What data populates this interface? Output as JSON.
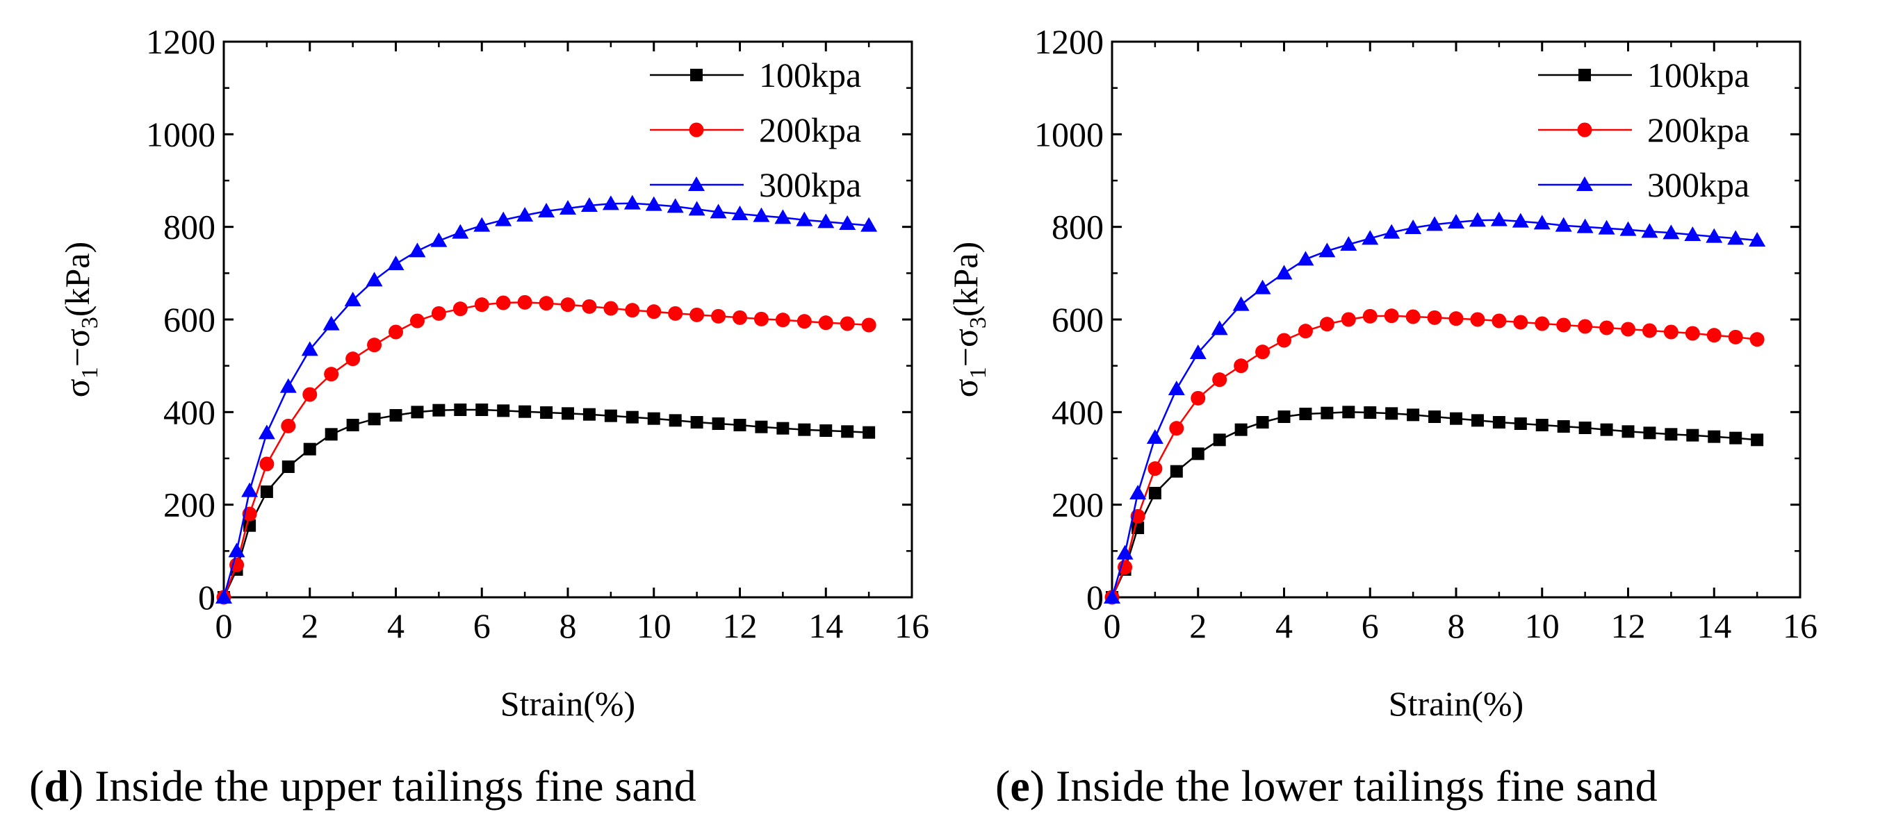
{
  "panels": [
    {
      "caption_letter": "d",
      "caption_text": "Inside the upper tailings fine sand"
    },
    {
      "caption_letter": "e",
      "caption_text": "Inside the lower tailings fine sand"
    }
  ],
  "colors": {
    "s100": "#000000",
    "s200": "#ff0000",
    "s300": "#0000ff"
  },
  "chart_data": [
    {
      "type": "line",
      "title": "",
      "xlabel": "Strain(%)",
      "ylabel_sigma": "σ",
      "ylabel_sub1": "1",
      "ylabel_minus": "−",
      "ylabel_sub3": "3",
      "ylabel_unit": "(kPa)",
      "xlim": [
        0,
        16
      ],
      "ylim": [
        0,
        1200
      ],
      "xticks": [
        0,
        2,
        4,
        6,
        8,
        10,
        12,
        14,
        16
      ],
      "yticks": [
        0,
        200,
        400,
        600,
        800,
        1000,
        1200
      ],
      "legend_position": "top-right",
      "x": [
        0,
        0.3,
        0.6,
        1,
        1.5,
        2,
        2.5,
        3,
        3.5,
        4,
        4.5,
        5,
        5.5,
        6,
        6.5,
        7,
        7.5,
        8,
        8.5,
        9,
        9.5,
        10,
        10.5,
        11,
        11.5,
        12,
        12.5,
        13,
        13.5,
        14,
        14.5,
        15
      ],
      "series": [
        {
          "name": "100kpa",
          "marker": "square",
          "values": [
            0,
            60,
            155,
            228,
            282,
            320,
            352,
            372,
            385,
            393,
            400,
            404,
            405,
            405,
            403,
            401,
            399,
            397,
            395,
            392,
            389,
            386,
            382,
            378,
            375,
            372,
            368,
            365,
            362,
            360,
            358,
            356
          ]
        },
        {
          "name": "200kpa",
          "marker": "circle",
          "values": [
            0,
            70,
            180,
            288,
            370,
            438,
            482,
            515,
            545,
            573,
            597,
            613,
            623,
            632,
            636,
            637,
            635,
            632,
            628,
            624,
            620,
            617,
            613,
            610,
            607,
            604,
            601,
            599,
            596,
            593,
            591,
            588
          ]
        },
        {
          "name": "300kpa",
          "marker": "triangle",
          "values": [
            0,
            100,
            230,
            355,
            455,
            535,
            590,
            642,
            685,
            720,
            748,
            770,
            788,
            803,
            815,
            825,
            834,
            840,
            846,
            850,
            851,
            848,
            844,
            838,
            832,
            828,
            824,
            820,
            815,
            811,
            807,
            803
          ]
        }
      ]
    },
    {
      "type": "line",
      "title": "",
      "xlabel": "Strain(%)",
      "ylabel_sigma": "σ",
      "ylabel_sub1": "1",
      "ylabel_minus": "−",
      "ylabel_sub3": "3",
      "ylabel_unit": "(kPa)",
      "xlim": [
        0,
        16
      ],
      "ylim": [
        0,
        1200
      ],
      "xticks": [
        0,
        2,
        4,
        6,
        8,
        10,
        12,
        14,
        16
      ],
      "yticks": [
        0,
        200,
        400,
        600,
        800,
        1000,
        1200
      ],
      "legend_position": "top-right",
      "x": [
        0,
        0.3,
        0.6,
        1,
        1.5,
        2,
        2.5,
        3,
        3.5,
        4,
        4.5,
        5,
        5.5,
        6,
        6.5,
        7,
        7.5,
        8,
        8.5,
        9,
        9.5,
        10,
        10.5,
        11,
        11.5,
        12,
        12.5,
        13,
        13.5,
        14,
        14.5,
        15
      ],
      "series": [
        {
          "name": "100kpa",
          "marker": "square",
          "values": [
            0,
            60,
            150,
            225,
            272,
            310,
            340,
            362,
            378,
            390,
            396,
            398,
            400,
            399,
            397,
            394,
            390,
            386,
            382,
            378,
            375,
            372,
            369,
            366,
            362,
            358,
            355,
            352,
            350,
            347,
            344,
            340
          ]
        },
        {
          "name": "200kpa",
          "marker": "circle",
          "values": [
            0,
            65,
            175,
            278,
            365,
            430,
            470,
            500,
            530,
            555,
            575,
            590,
            600,
            607,
            608,
            606,
            604,
            602,
            600,
            597,
            594,
            591,
            588,
            585,
            582,
            579,
            576,
            573,
            570,
            566,
            562,
            557
          ]
        },
        {
          "name": "300kpa",
          "marker": "triangle",
          "values": [
            0,
            95,
            225,
            345,
            450,
            528,
            580,
            632,
            668,
            700,
            730,
            748,
            762,
            775,
            788,
            798,
            805,
            810,
            814,
            815,
            812,
            808,
            803,
            800,
            797,
            794,
            790,
            787,
            783,
            779,
            775,
            771
          ]
        }
      ]
    }
  ]
}
